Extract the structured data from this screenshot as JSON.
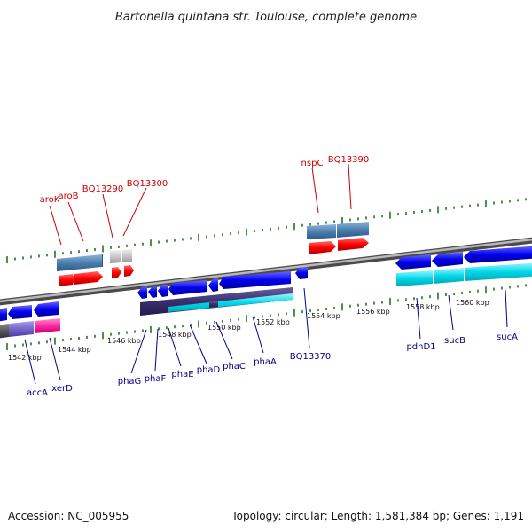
{
  "title": "Bartonella quintana str. Toulouse, complete genome",
  "footer": {
    "accession": "Accession: NC_005955",
    "summary": "Topology: circular; Length: 1,581,384 bp; Genes: 1,191"
  },
  "colors": {
    "top_label": "#cc0000",
    "bottom_label": "#00008b",
    "backbone": "#7a7a7a",
    "tick": "#1a7a1a",
    "forward_gene": "#ff0000",
    "forward_cds": "#4a7fb0",
    "reverse_gene": "#0000ee",
    "reverse_cds_cyan": "#00d8e8",
    "reverse_cds_dark": "#3a2f6e",
    "pseudo_grey": "#c8c8c8",
    "accA_block": "#7766cc",
    "xerD_block": "#ff2aa0"
  },
  "scale_labels": [
    "1542 kbp",
    "1544 kbp",
    "1546 kbp",
    "1548 kbp",
    "1550 kbp",
    "1552 kbp",
    "1554 kbp",
    "1556 kbp",
    "1558 kbp",
    "1560 kbp"
  ],
  "top_genes": [
    "aroK",
    "aroB",
    "BQ13290",
    "BQ13300",
    "nspC",
    "BQ13390"
  ],
  "bottom_genes": [
    "accA",
    "xerD",
    "phaG",
    "phaF",
    "phaE",
    "phaD",
    "phaC",
    "phaA",
    "BQ13370",
    "pdhD1",
    "sucB",
    "sucA"
  ]
}
